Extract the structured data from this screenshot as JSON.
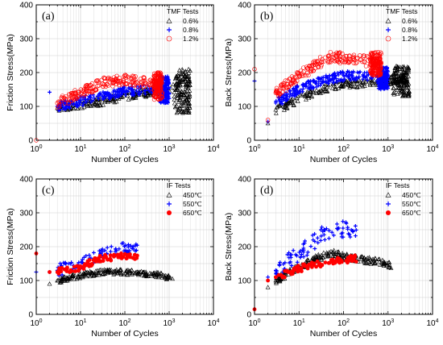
{
  "figure": {
    "panels_desc": "Four log-x scatter panels"
  },
  "chart_data": [
    {
      "type": "scatter",
      "panel_label": "(a)",
      "ylabel": "Friction Stress(MPa)",
      "xlabel": "Number of Cycles",
      "xscale": "log",
      "xlim": [
        1,
        10000
      ],
      "ylim": [
        0,
        400
      ],
      "yticks": [
        "0",
        "100",
        "200",
        "300",
        "400"
      ],
      "xticks": [
        "10^0",
        "10^1",
        "10^2",
        "10^3",
        "10^4"
      ],
      "grid": true,
      "legend": {
        "title": "TMF Tests",
        "placement": "top-right",
        "entries": [
          {
            "label": "0.6%",
            "marker": "triangle",
            "color": "#000000"
          },
          {
            "label": "0.8%",
            "marker": "plus",
            "color": "#0000ff"
          },
          {
            "label": "1.2%",
            "marker": "circle",
            "color": "#ff0000"
          }
        ]
      },
      "series": [
        {
          "label_ref": 0,
          "color": "#000000",
          "marker": "triangle",
          "lifetime": 3000,
          "anchors": [
            [
              3,
              95
            ],
            [
              10,
              105
            ],
            [
              30,
              115
            ],
            [
              100,
              130
            ],
            [
              300,
              140
            ],
            [
              800,
              150
            ],
            [
              1500,
              160
            ],
            [
              2000,
              170
            ],
            [
              2500,
              160
            ],
            [
              3000,
              130
            ]
          ],
          "spread": 12,
          "density": 1.0,
          "end_fan": {
            "from": 1300,
            "to": 3000,
            "ymin": 80,
            "ymax": 210
          }
        },
        {
          "label_ref": 1,
          "color": "#0000ff",
          "marker": "plus",
          "lifetime": 1000,
          "anchors": [
            [
              2,
              142
            ],
            [
              3,
              100
            ],
            [
              10,
              115
            ],
            [
              30,
              130
            ],
            [
              100,
              145
            ],
            [
              300,
              150
            ],
            [
              700,
              150
            ],
            [
              1000,
              145
            ]
          ],
          "spread": 14,
          "density": 1.0,
          "end_fan": {
            "from": 600,
            "to": 1000,
            "ymin": 110,
            "ymax": 190
          }
        },
        {
          "label_ref": 2,
          "color": "#ff0000",
          "marker": "circle",
          "lifetime": 700,
          "anchors": [
            [
              1,
              0
            ],
            [
              3,
              110
            ],
            [
              10,
              140
            ],
            [
              30,
              170
            ],
            [
              100,
              180
            ],
            [
              300,
              170
            ],
            [
              700,
              160
            ]
          ],
          "spread": 15,
          "density": 1.0,
          "end_fan": {
            "from": 450,
            "to": 700,
            "ymin": 120,
            "ymax": 200
          }
        }
      ]
    },
    {
      "type": "scatter",
      "panel_label": "(b)",
      "ylabel": "Back Stress(MPa)",
      "xlabel": "Number of Cycles",
      "xscale": "log",
      "xlim": [
        1,
        10000
      ],
      "ylim": [
        0,
        400
      ],
      "yticks": [
        "0",
        "100",
        "200",
        "300",
        "400"
      ],
      "xticks": [
        "10^0",
        "10^1",
        "10^2",
        "10^3",
        "10^4"
      ],
      "grid": true,
      "legend": {
        "title": "TMF Tests",
        "placement": "top-right",
        "entries": [
          {
            "label": "0.6%",
            "marker": "triangle",
            "color": "#000000"
          },
          {
            "label": "0.8%",
            "marker": "plus",
            "color": "#0000ff"
          },
          {
            "label": "1.2%",
            "marker": "circle",
            "color": "#ff0000"
          }
        ]
      },
      "series": [
        {
          "label_ref": 0,
          "color": "#000000",
          "marker": "triangle",
          "lifetime": 3000,
          "anchors": [
            [
              2,
              50
            ],
            [
              3,
              90
            ],
            [
              10,
              120
            ],
            [
              30,
              150
            ],
            [
              100,
              165
            ],
            [
              300,
              170
            ],
            [
              1000,
              175
            ],
            [
              2000,
              180
            ],
            [
              3000,
              170
            ]
          ],
          "spread": 12,
          "density": 1.0,
          "end_fan": {
            "from": 1300,
            "to": 3000,
            "ymin": 130,
            "ymax": 220
          }
        },
        {
          "label_ref": 1,
          "color": "#0000ff",
          "marker": "plus",
          "lifetime": 1000,
          "anchors": [
            [
              1,
              175
            ],
            [
              2,
              55
            ],
            [
              3,
              110
            ],
            [
              10,
              150
            ],
            [
              30,
              175
            ],
            [
              100,
              190
            ],
            [
              300,
              190
            ],
            [
              1000,
              185
            ]
          ],
          "spread": 14,
          "density": 1.0,
          "end_fan": {
            "from": 600,
            "to": 1000,
            "ymin": 150,
            "ymax": 215
          }
        },
        {
          "label_ref": 2,
          "color": "#ff0000",
          "marker": "circle",
          "lifetime": 700,
          "anchors": [
            [
              1,
              210
            ],
            [
              2,
              60
            ],
            [
              3,
              140
            ],
            [
              10,
              190
            ],
            [
              30,
              230
            ],
            [
              60,
              250
            ],
            [
              100,
              240
            ],
            [
              300,
              235
            ],
            [
              700,
              225
            ]
          ],
          "spread": 16,
          "density": 1.0,
          "end_fan": {
            "from": 400,
            "to": 700,
            "ymin": 190,
            "ymax": 260
          }
        }
      ]
    },
    {
      "type": "scatter",
      "panel_label": "(c)",
      "ylabel": "Friction Stress(MPa)",
      "xlabel": "Number of Cycles",
      "xscale": "log",
      "xlim": [
        1,
        10000
      ],
      "ylim": [
        0,
        400
      ],
      "yticks": [
        "0",
        "100",
        "200",
        "300",
        "400"
      ],
      "xticks": [
        "10^0",
        "10^1",
        "10^2",
        "10^3",
        "10^4"
      ],
      "grid": true,
      "legend": {
        "title": "IF Tests",
        "placement": "top-right",
        "entries": [
          {
            "label": "450℃",
            "marker": "triangle",
            "color": "#000000"
          },
          {
            "label": "550℃",
            "marker": "plus",
            "color": "#0000ff"
          },
          {
            "label": "650℃",
            "marker": "filled-circle",
            "color": "#ff0000"
          }
        ]
      },
      "series": [
        {
          "label_ref": 0,
          "color": "#000000",
          "marker": "triangle",
          "lifetime": 1200,
          "anchors": [
            [
              2,
              90
            ],
            [
              3,
              100
            ],
            [
              10,
              115
            ],
            [
              30,
              125
            ],
            [
              100,
              125
            ],
            [
              300,
              120
            ],
            [
              700,
              115
            ],
            [
              1200,
              105
            ]
          ],
          "spread": 8,
          "density": 1.0
        },
        {
          "label_ref": 1,
          "color": "#0000ff",
          "marker": "plus",
          "lifetime": 200,
          "anchors": [
            [
              1,
              125
            ],
            [
              2,
              125
            ],
            [
              3,
              130
            ],
            [
              10,
              150
            ],
            [
              30,
              175
            ],
            [
              60,
              190
            ],
            [
              100,
              195
            ],
            [
              200,
              190
            ]
          ],
          "spread": 18,
          "density": 1.0
        },
        {
          "label_ref": 2,
          "color": "#ff0000",
          "marker": "filled-circle",
          "lifetime": 200,
          "anchors": [
            [
              1,
              180
            ],
            [
              2,
              125
            ],
            [
              3,
              125
            ],
            [
              10,
              140
            ],
            [
              30,
              165
            ],
            [
              100,
              175
            ],
            [
              200,
              170
            ]
          ],
          "spread": 10,
          "density": 1.0
        }
      ]
    },
    {
      "type": "scatter",
      "panel_label": "(d)",
      "ylabel": "Back Stress(MPa)",
      "xlabel": "Number of Cycles",
      "xscale": "log",
      "xlim": [
        1,
        10000
      ],
      "ylim": [
        0,
        400
      ],
      "yticks": [
        "0",
        "100",
        "200",
        "300",
        "400"
      ],
      "xticks": [
        "10^0",
        "10^1",
        "10^2",
        "10^3",
        "10^4"
      ],
      "grid": true,
      "legend": {
        "title": "IF Tests",
        "placement": "top-right",
        "entries": [
          {
            "label": "450℃",
            "marker": "triangle",
            "color": "#000000"
          },
          {
            "label": "550℃",
            "marker": "plus",
            "color": "#0000ff"
          },
          {
            "label": "650℃",
            "marker": "filled-circle",
            "color": "#ff0000"
          }
        ]
      },
      "series": [
        {
          "label_ref": 0,
          "color": "#000000",
          "marker": "triangle",
          "lifetime": 1200,
          "anchors": [
            [
              2,
              80
            ],
            [
              3,
              100
            ],
            [
              10,
              140
            ],
            [
              30,
              170
            ],
            [
              60,
              180
            ],
            [
              100,
              170
            ],
            [
              300,
              160
            ],
            [
              700,
              155
            ],
            [
              1200,
              145
            ]
          ],
          "spread": 10,
          "density": 1.0
        },
        {
          "label_ref": 1,
          "color": "#0000ff",
          "marker": "plus",
          "lifetime": 200,
          "anchors": [
            [
              2,
              110
            ],
            [
              3,
              130
            ],
            [
              10,
              180
            ],
            [
              30,
              230
            ],
            [
              60,
              255
            ],
            [
              100,
              250
            ],
            [
              200,
              250
            ]
          ],
          "spread": 25,
          "density": 1.0
        },
        {
          "label_ref": 2,
          "color": "#ff0000",
          "marker": "filled-circle",
          "lifetime": 200,
          "anchors": [
            [
              1,
              15
            ],
            [
              2,
              100
            ],
            [
              3,
              110
            ],
            [
              10,
              135
            ],
            [
              30,
              150
            ],
            [
              100,
              160
            ],
            [
              200,
              165
            ]
          ],
          "spread": 10,
          "density": 1.0
        }
      ]
    }
  ]
}
